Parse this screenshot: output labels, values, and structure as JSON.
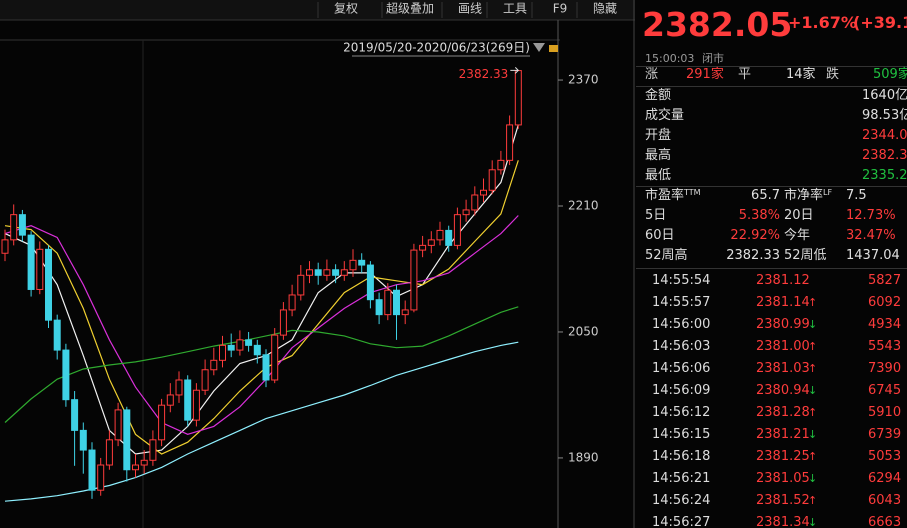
{
  "toolbar": [
    "复权",
    "超级叠加",
    "画线",
    "工具",
    "F9",
    "隐藏"
  ],
  "chart_data": {
    "type": "candlestick",
    "date_range": "2019/05/20-2020/06/23(269日)",
    "annotation": "2382.33",
    "ylim": [
      1801,
      2398
    ],
    "yticks": [
      1890,
      2050,
      2210,
      2370
    ],
    "up_color": "#ff3c3c",
    "down_color": "#3fd2e6",
    "open": [
      2150,
      2167,
      2199,
      2173,
      2104,
      2155,
      2065,
      2027,
      1964,
      1925,
      1900,
      1849,
      1881,
      1913,
      1951,
      1875,
      1881,
      1887,
      1913,
      1957,
      1970,
      1989,
      1938,
      1976,
      2002,
      2014,
      2033,
      2027,
      2040,
      2033,
      2021,
      1989,
      2046,
      2078,
      2097,
      2122,
      2129,
      2122,
      2129,
      2122,
      2129,
      2141,
      2135,
      2091,
      2072,
      2103,
      2072,
      2078,
      2154,
      2160,
      2167,
      2179,
      2160,
      2199,
      2205,
      2224,
      2230,
      2256,
      2268,
      2313
    ],
    "close": [
      2167,
      2199,
      2173,
      2104,
      2155,
      2065,
      2027,
      1964,
      1925,
      1900,
      1849,
      1881,
      1913,
      1951,
      1875,
      1881,
      1887,
      1913,
      1957,
      1970,
      1989,
      1938,
      1976,
      2002,
      2014,
      2033,
      2027,
      2040,
      2033,
      2021,
      1989,
      2046,
      2078,
      2097,
      2122,
      2129,
      2122,
      2129,
      2122,
      2129,
      2141,
      2135,
      2091,
      2072,
      2103,
      2072,
      2078,
      2154,
      2160,
      2167,
      2179,
      2160,
      2199,
      2205,
      2224,
      2230,
      2256,
      2268,
      2313,
      2382.05
    ],
    "high": [
      2180,
      2212,
      2205,
      2178,
      2165,
      2160,
      2072,
      2035,
      1975,
      1935,
      1910,
      1890,
      1925,
      1960,
      1955,
      1895,
      1900,
      1925,
      1965,
      1985,
      2000,
      1995,
      1985,
      2015,
      2030,
      2045,
      2048,
      2052,
      2050,
      2040,
      2028,
      2055,
      2088,
      2110,
      2135,
      2140,
      2138,
      2142,
      2136,
      2140,
      2155,
      2150,
      2140,
      2100,
      2112,
      2110,
      2090,
      2162,
      2172,
      2178,
      2190,
      2185,
      2208,
      2218,
      2235,
      2245,
      2268,
      2280,
      2325,
      2382.33
    ],
    "low": [
      2140,
      2160,
      2165,
      2095,
      2098,
      2055,
      2015,
      1955,
      1880,
      1870,
      1838,
      1842,
      1875,
      1905,
      1860,
      1865,
      1870,
      1880,
      1905,
      1948,
      1960,
      1930,
      1930,
      1970,
      1995,
      2005,
      2018,
      2020,
      2025,
      2010,
      1980,
      1985,
      2040,
      2070,
      2090,
      2112,
      2110,
      2115,
      2112,
      2115,
      2120,
      2125,
      2080,
      2060,
      2065,
      2040,
      2060,
      2075,
      2145,
      2150,
      2160,
      2152,
      2155,
      2190,
      2198,
      2215,
      2225,
      2250,
      2262,
      2308
    ],
    "series": [
      {
        "color": "#f2f2f2",
        "x": [
          0,
          3,
          6,
          9,
          12,
          15,
          18,
          21,
          24,
          27,
          30,
          33,
          36,
          39,
          42,
          45,
          48,
          51,
          54,
          57,
          59
        ],
        "values": [
          2175,
          2160,
          2110,
          2020,
          1925,
          1895,
          1900,
          1930,
          1975,
          2010,
          2020,
          2040,
          2100,
          2125,
          2125,
          2095,
          2110,
          2160,
          2200,
          2240,
          2313
        ]
      },
      {
        "color": "#f0d030",
        "x": [
          0,
          3,
          6,
          9,
          12,
          15,
          18,
          21,
          24,
          27,
          30,
          33,
          36,
          39,
          42,
          45,
          48,
          51,
          54,
          57,
          59
        ],
        "values": [
          2185,
          2180,
          2150,
          2080,
          1990,
          1920,
          1895,
          1910,
          1940,
          1975,
          2005,
          2020,
          2060,
          2100,
          2120,
          2115,
          2110,
          2130,
          2165,
          2200,
          2268
        ]
      },
      {
        "color": "#d930d9",
        "x": [
          0,
          3,
          6,
          9,
          12,
          15,
          18,
          21,
          24,
          27,
          30,
          33,
          36,
          39,
          42,
          45,
          48,
          51,
          54,
          57,
          59
        ],
        "values": [
          2175,
          2185,
          2170,
          2110,
          2040,
          1980,
          1935,
          1920,
          1930,
          1955,
          1990,
          2030,
          2055,
          2080,
          2100,
          2110,
          2115,
          2125,
          2150,
          2175,
          2198
        ]
      },
      {
        "color": "#2faa2f",
        "x": [
          0,
          3,
          6,
          9,
          12,
          15,
          18,
          21,
          24,
          27,
          30,
          33,
          36,
          39,
          42,
          45,
          48,
          51,
          54,
          57,
          59
        ],
        "values": [
          1935,
          1965,
          1990,
          2003,
          2008,
          2012,
          2018,
          2025,
          2032,
          2038,
          2045,
          2052,
          2050,
          2045,
          2035,
          2030,
          2032,
          2045,
          2060,
          2075,
          2082
        ]
      },
      {
        "color": "#8ff0ff",
        "x": [
          0,
          3,
          6,
          9,
          12,
          15,
          18,
          21,
          24,
          27,
          30,
          33,
          36,
          39,
          42,
          45,
          48,
          51,
          54,
          57,
          59
        ],
        "values": [
          1835,
          1838,
          1842,
          1848,
          1855,
          1865,
          1878,
          1895,
          1910,
          1925,
          1940,
          1950,
          1960,
          1970,
          1982,
          1995,
          2005,
          2015,
          2025,
          2033,
          2037
        ]
      }
    ]
  },
  "quote": {
    "price": "2382.05",
    "change_pct": "+1.67%",
    "change": "(+39.1",
    "time": "15:00:03",
    "status": "闭市",
    "breadth": [
      {
        "label": "涨",
        "value": "291家",
        "color": "#ff3c3c"
      },
      {
        "label": "平",
        "value": "14家",
        "color": "#e0e0e0"
      },
      {
        "label": "跌",
        "value": "509家",
        "color": "#20c040"
      }
    ],
    "stats": [
      {
        "label": "金额",
        "value": "1640亿",
        "color": "#e0e0e0"
      },
      {
        "label": "成交量",
        "value": "98.53亿",
        "color": "#e0e0e0"
      },
      {
        "label": "开盘",
        "value": "2344.0",
        "color": "#ff3c3c"
      },
      {
        "label": "最高",
        "value": "2382.3",
        "color": "#ff3c3c"
      },
      {
        "label": "最低",
        "value": "2335.2",
        "color": "#20c040"
      }
    ],
    "ratios": [
      [
        {
          "label": "市盈率",
          "sup": "TTM",
          "value": "65.7",
          "color": "#e0e0e0"
        },
        {
          "label": "市净率",
          "sup": "LF",
          "value": "7.5",
          "color": "#e0e0e0"
        }
      ],
      [
        {
          "label": "5日",
          "value": "5.38%",
          "color": "#ff3c3c"
        },
        {
          "label": "20日",
          "value": "12.73%",
          "color": "#ff3c3c"
        }
      ],
      [
        {
          "label": "60日",
          "value": "22.92%",
          "color": "#ff3c3c"
        },
        {
          "label": "今年",
          "value": "32.47%",
          "color": "#ff3c3c"
        }
      ],
      [
        {
          "label": "52周高",
          "value": "2382.33",
          "color": "#e0e0e0"
        },
        {
          "label": "52周低",
          "value": "1437.04",
          "color": "#e0e0e0"
        }
      ]
    ],
    "ticks": [
      {
        "time": "14:55:54",
        "price": "2381.12",
        "dir": null,
        "volume": "5827"
      },
      {
        "time": "14:55:57",
        "price": "2381.14",
        "dir": "up",
        "volume": "6092"
      },
      {
        "time": "14:56:00",
        "price": "2380.99",
        "dir": "down",
        "volume": "4934"
      },
      {
        "time": "14:56:03",
        "price": "2381.00",
        "dir": "up",
        "volume": "5543"
      },
      {
        "time": "14:56:06",
        "price": "2381.03",
        "dir": "up",
        "volume": "7390"
      },
      {
        "time": "14:56:09",
        "price": "2380.94",
        "dir": "down",
        "volume": "6745"
      },
      {
        "time": "14:56:12",
        "price": "2381.28",
        "dir": "up",
        "volume": "5910"
      },
      {
        "time": "14:56:15",
        "price": "2381.21",
        "dir": "down",
        "volume": "6739"
      },
      {
        "time": "14:56:18",
        "price": "2381.25",
        "dir": "up",
        "volume": "5053"
      },
      {
        "time": "14:56:21",
        "price": "2381.05",
        "dir": "down",
        "volume": "6294"
      },
      {
        "time": "14:56:24",
        "price": "2381.52",
        "dir": "up",
        "volume": "6043"
      },
      {
        "time": "14:56:27",
        "price": "2381.34",
        "dir": "down",
        "volume": "6663"
      }
    ]
  }
}
